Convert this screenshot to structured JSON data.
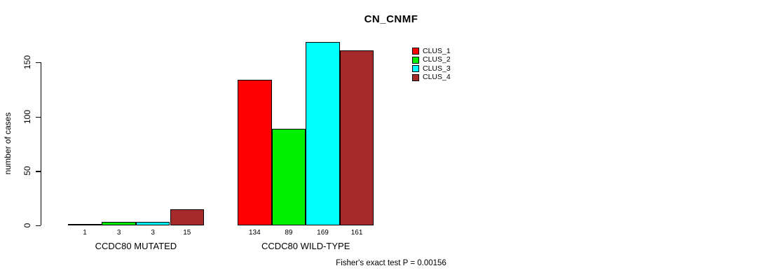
{
  "chart_data": {
    "type": "bar",
    "title": "CN_CNMF",
    "ylabel": "number of cases",
    "footer": "Fisher's exact test P = 0.00156",
    "categories": [
      "CCDC80 MUTATED",
      "CCDC80 WILD-TYPE"
    ],
    "series": [
      {
        "name": "CLUS_1",
        "color": "#FF0000",
        "values": [
          1,
          134
        ]
      },
      {
        "name": "CLUS_2",
        "color": "#00EE00",
        "values": [
          3,
          89
        ]
      },
      {
        "name": "CLUS_3",
        "color": "#00FFFF",
        "values": [
          3,
          169
        ]
      },
      {
        "name": "CLUS_4",
        "color": "#A52A2A",
        "values": [
          15,
          161
        ]
      }
    ],
    "bar_value_labels": [
      [
        "1",
        "3",
        "3",
        "15"
      ],
      [
        "134",
        "89",
        "169",
        "161"
      ]
    ],
    "yticks": [
      0,
      50,
      100,
      150
    ],
    "ylim": [
      0,
      175
    ],
    "grid": false,
    "legend_position": "top-right-inside",
    "bar_border_color": "#000000",
    "text_color": "#000000",
    "background_color": "#FFFFFF"
  }
}
